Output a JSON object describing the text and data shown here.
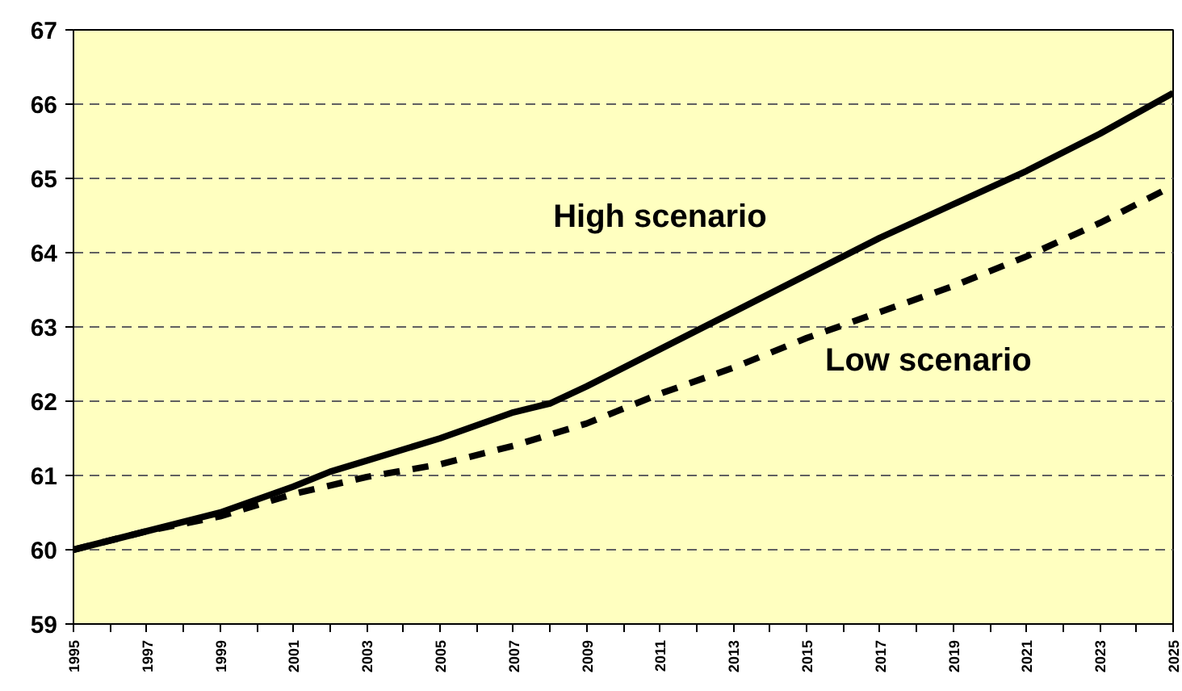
{
  "chart_data": {
    "type": "line",
    "xlim": [
      1995,
      2025
    ],
    "ylim": [
      59,
      67
    ],
    "xticks": [
      1995,
      {
        "value": 1996,
        "label": null
      },
      1997,
      {
        "value": 1998,
        "label": null
      },
      1999,
      {
        "value": 2000,
        "label": null
      },
      2001,
      {
        "value": 2002,
        "label": null
      },
      2003,
      {
        "value": 2004,
        "label": null
      },
      2005,
      {
        "value": 2006,
        "label": null
      },
      2007,
      {
        "value": 2008,
        "label": null
      },
      2009,
      {
        "value": 2010,
        "label": null
      },
      2011,
      {
        "value": 2012,
        "label": null
      },
      2013,
      {
        "value": 2014,
        "label": null
      },
      2015,
      {
        "value": 2016,
        "label": null
      },
      2017,
      {
        "value": 2018,
        "label": null
      },
      2019,
      {
        "value": 2020,
        "label": null
      },
      2021,
      {
        "value": 2022,
        "label": null
      },
      2023,
      {
        "value": 2024,
        "label": null
      },
      2025
    ],
    "yticks": [
      59,
      60,
      61,
      62,
      63,
      64,
      65,
      66,
      67
    ],
    "grid": "y",
    "series": [
      {
        "name": "High scenario",
        "color": "#000000",
        "line_style": "solid",
        "x": [
          1995,
          1997,
          1999,
          2001,
          2002,
          2003,
          2005,
          2007,
          2008,
          2009,
          2011,
          2013,
          2015,
          2017,
          2019,
          2021,
          2023,
          2025
        ],
        "values": [
          60.0,
          60.25,
          60.5,
          60.85,
          61.05,
          61.2,
          61.5,
          61.85,
          61.97,
          62.2,
          62.7,
          63.2,
          63.7,
          64.2,
          64.65,
          65.1,
          65.6,
          66.15
        ]
      },
      {
        "name": "Low scenario",
        "color": "#000000",
        "line_style": "dashed",
        "x": [
          1995,
          1997,
          1999,
          2001,
          2003,
          2005,
          2007,
          2009,
          2011,
          2013,
          2015,
          2017,
          2019,
          2021,
          2023,
          2025
        ],
        "values": [
          60.0,
          60.25,
          60.45,
          60.75,
          60.98,
          61.15,
          61.4,
          61.7,
          62.1,
          62.45,
          62.85,
          63.2,
          63.55,
          63.95,
          64.4,
          64.9
        ]
      }
    ]
  }
}
